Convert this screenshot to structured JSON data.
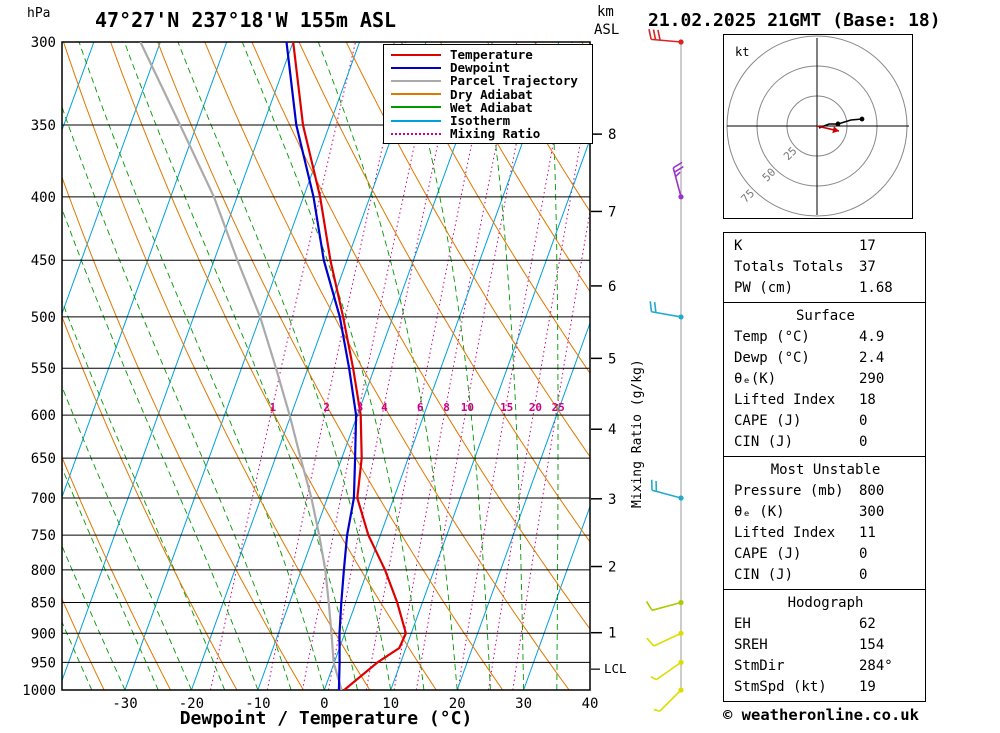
{
  "header": {
    "station_title": "47°27'N 237°18'W 155m ASL",
    "datetime_title": "21.02.2025 21GMT (Base: 18)"
  },
  "axes": {
    "pressure_unit": "hPa",
    "pressure_ticks": [
      300,
      350,
      400,
      450,
      500,
      550,
      600,
      650,
      700,
      750,
      800,
      850,
      900,
      950,
      1000
    ],
    "temp_ticks": [
      -30,
      -20,
      -10,
      0,
      10,
      20,
      30,
      40
    ],
    "xlabel": "Dewpoint / Temperature (°C)",
    "km_label": "km",
    "asl_label": "ASL",
    "mixing_ratio_label": "Mixing Ratio (g/kg)",
    "lcl_label": "LCL",
    "km_ticks": [
      {
        "km": 8,
        "p": 356
      },
      {
        "km": 7,
        "p": 411
      },
      {
        "km": 6,
        "p": 472
      },
      {
        "km": 5,
        "p": 540
      },
      {
        "km": 4,
        "p": 616
      },
      {
        "km": 3,
        "p": 701
      },
      {
        "km": 2,
        "p": 795
      },
      {
        "km": 1,
        "p": 899
      }
    ]
  },
  "legend": [
    {
      "label": "Temperature",
      "color": "#dd0000",
      "dash": false
    },
    {
      "label": "Dewpoint",
      "color": "#0000cc",
      "dash": false
    },
    {
      "label": "Parcel Trajectory",
      "color": "#aaaaaa",
      "dash": false
    },
    {
      "label": "Dry Adiabat",
      "color": "#e07800",
      "dash": false
    },
    {
      "label": "Wet Adiabat",
      "color": "#009900",
      "dash": false
    },
    {
      "label": "Isotherm",
      "color": "#00a0dd",
      "dash": false
    },
    {
      "label": "Mixing Ratio",
      "color": "#cc0088",
      "dash": true
    }
  ],
  "chart_data": {
    "type": "skewt-log-p-sounding",
    "pressure_range": [
      300,
      1000
    ],
    "temp_axis_range_c": [
      -40,
      40
    ],
    "isotherm_step_c": 10,
    "mixing_ratio_values": [
      1,
      2,
      3,
      4,
      6,
      8,
      10,
      15,
      20,
      25
    ],
    "lcl_pressure": 962,
    "colors": {
      "temperature": "#dd0000",
      "dewpoint": "#0000cc",
      "parcel": "#aaaaaa",
      "dry_adiabat": "#e07800",
      "wet_adiabat": "#009900",
      "isotherm": "#00a0dd",
      "mixing_ratio": "#cc0088"
    },
    "soundings": {
      "temperature": [
        [
          300,
          -40
        ],
        [
          350,
          -34
        ],
        [
          400,
          -27.5
        ],
        [
          450,
          -22.5
        ],
        [
          500,
          -17.5
        ],
        [
          550,
          -13.2
        ],
        [
          600,
          -9.5
        ],
        [
          650,
          -7
        ],
        [
          700,
          -5.5
        ],
        [
          750,
          -1.8
        ],
        [
          800,
          2.6
        ],
        [
          850,
          6.2
        ],
        [
          900,
          9.2
        ],
        [
          925,
          9.0
        ],
        [
          950,
          6.5
        ],
        [
          1000,
          3.0
        ]
      ],
      "dewpoint": [
        [
          300,
          -41
        ],
        [
          350,
          -35
        ],
        [
          400,
          -28.5
        ],
        [
          450,
          -23.5
        ],
        [
          500,
          -18
        ],
        [
          550,
          -13.8
        ],
        [
          600,
          -10.2
        ],
        [
          650,
          -8
        ],
        [
          700,
          -6
        ],
        [
          750,
          -5
        ],
        [
          800,
          -3.6
        ],
        [
          850,
          -2.2
        ],
        [
          900,
          -0.8
        ],
        [
          950,
          0.8
        ],
        [
          1000,
          2.2
        ]
      ],
      "parcel": [
        [
          300,
          -63
        ],
        [
          350,
          -52.5
        ],
        [
          400,
          -43.5
        ],
        [
          450,
          -36.5
        ],
        [
          500,
          -30
        ],
        [
          550,
          -24.8
        ],
        [
          600,
          -20.2
        ],
        [
          650,
          -16.2
        ],
        [
          700,
          -12.4
        ],
        [
          750,
          -9.2
        ],
        [
          800,
          -6.4
        ],
        [
          850,
          -4.1
        ],
        [
          900,
          -2.0
        ],
        [
          950,
          -0.1
        ],
        [
          1000,
          2.6
        ]
      ]
    },
    "winds": [
      {
        "p": 300,
        "kt": 30,
        "dir": 275,
        "color": "#dd2222"
      },
      {
        "p": 400,
        "kt": 25,
        "dir": 345,
        "color": "#9933cc"
      },
      {
        "p": 500,
        "kt": 20,
        "dir": 280,
        "color": "#22aacc"
      },
      {
        "p": 700,
        "kt": 20,
        "dir": 285,
        "color": "#22aacc"
      },
      {
        "p": 850,
        "kt": 10,
        "dir": 255,
        "color": "#aacc00"
      },
      {
        "p": 900,
        "kt": 10,
        "dir": 245,
        "color": "#dddd00"
      },
      {
        "p": 950,
        "kt": 5,
        "dir": 235,
        "color": "#dddd00"
      },
      {
        "p": 1000,
        "kt": 5,
        "dir": 225,
        "color": "#dddd00"
      }
    ]
  },
  "hodograph": {
    "unit_label": "kt",
    "rings_kt": [
      25,
      50,
      75
    ],
    "ring_labels": [
      "25",
      "50",
      "75"
    ],
    "trace_uv": [
      [
        1.7,
        -1.7
      ],
      [
        10,
        1.7
      ],
      [
        17.5,
        1.7
      ],
      [
        28.3,
        5
      ],
      [
        37.5,
        5.8
      ]
    ],
    "dots_uv": [
      [
        17.5,
        1.7
      ],
      [
        37.5,
        5.8
      ]
    ],
    "storm_uv": [
      18.3,
      -4.2
    ]
  },
  "panel": {
    "sections": [
      {
        "title": null,
        "rows": [
          [
            "K",
            "17"
          ],
          [
            "Totals Totals",
            "37"
          ],
          [
            "PW (cm)",
            "1.68"
          ]
        ]
      },
      {
        "title": "Surface",
        "rows": [
          [
            "Temp (°C)",
            "4.9"
          ],
          [
            "Dewp (°C)",
            "2.4"
          ],
          [
            "θₑ(K)",
            "290"
          ],
          [
            "Lifted Index",
            "18"
          ],
          [
            "CAPE (J)",
            "0"
          ],
          [
            "CIN (J)",
            "0"
          ]
        ]
      },
      {
        "title": "Most Unstable",
        "rows": [
          [
            "Pressure (mb)",
            "800"
          ],
          [
            "θₑ (K)",
            "300"
          ],
          [
            "Lifted Index",
            "11"
          ],
          [
            "CAPE (J)",
            "0"
          ],
          [
            "CIN (J)",
            "0"
          ]
        ]
      },
      {
        "title": "Hodograph",
        "rows": [
          [
            "EH",
            "62"
          ],
          [
            "SREH",
            "154"
          ],
          [
            "StmDir",
            "284°"
          ],
          [
            "StmSpd (kt)",
            "19"
          ]
        ]
      }
    ]
  },
  "footer": {
    "copyright": "© weatheronline.co.uk"
  }
}
